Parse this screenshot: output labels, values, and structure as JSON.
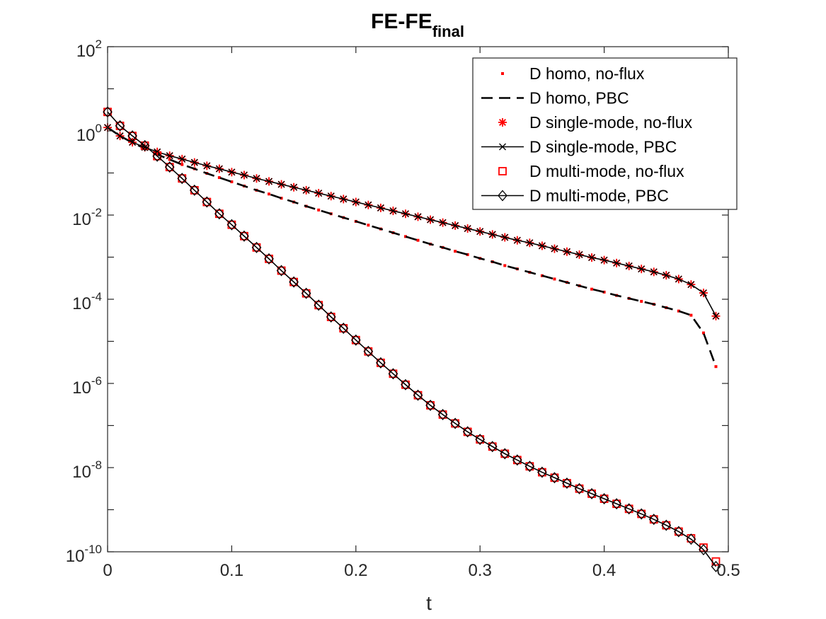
{
  "chart_data": {
    "type": "line",
    "title": "FE-FE",
    "title_subscript": "final",
    "xlabel": "t",
    "ylabel": "",
    "xlim": [
      0,
      0.5
    ],
    "ylim_log10": [
      -10,
      2
    ],
    "yscale": "log",
    "grid": false,
    "legend_position": "top-right",
    "x_ticks": [
      0,
      0.1,
      0.2,
      0.3,
      0.4,
      0.5
    ],
    "x_tick_labels": [
      "0",
      "0.1",
      "0.2",
      "0.3",
      "0.4",
      "0.5"
    ],
    "y_tick_exponents": [
      2,
      0,
      -2,
      -4,
      -6,
      -8,
      -10
    ],
    "y_tick_base": "10",
    "y_tick_exponent_labels": [
      "2",
      "0",
      "-2",
      "-4",
      "-6",
      "-8",
      "-10"
    ],
    "x": [
      0,
      0.01,
      0.02,
      0.03,
      0.04,
      0.05,
      0.06,
      0.07,
      0.08,
      0.09,
      0.1,
      0.11,
      0.12,
      0.13,
      0.14,
      0.15,
      0.16,
      0.17,
      0.18,
      0.19,
      0.2,
      0.21,
      0.22,
      0.23,
      0.24,
      0.25,
      0.26,
      0.27,
      0.28,
      0.29,
      0.3,
      0.31,
      0.32,
      0.33,
      0.34,
      0.35,
      0.36,
      0.37,
      0.38,
      0.39,
      0.4,
      0.41,
      0.42,
      0.43,
      0.44,
      0.45,
      0.46,
      0.47,
      0.48,
      0.49
    ],
    "series": [
      {
        "name": "D homo, no-flux",
        "style": "points",
        "color": "#ff0000",
        "log10_values": [
          0.08,
          -0.12,
          -0.28,
          -0.42,
          -0.56,
          -0.68,
          -0.8,
          -0.9,
          -1.01,
          -1.11,
          -1.21,
          -1.31,
          -1.41,
          -1.5,
          -1.6,
          -1.69,
          -1.79,
          -1.88,
          -1.97,
          -2.06,
          -2.15,
          -2.24,
          -2.33,
          -2.42,
          -2.51,
          -2.6,
          -2.69,
          -2.77,
          -2.86,
          -2.94,
          -3.03,
          -3.11,
          -3.2,
          -3.28,
          -3.36,
          -3.44,
          -3.52,
          -3.6,
          -3.68,
          -3.76,
          -3.83,
          -3.91,
          -3.98,
          -4.05,
          -4.12,
          -4.2,
          -4.28,
          -4.38,
          -4.8,
          -5.6
        ]
      },
      {
        "name": "D homo, PBC",
        "style": "dashed",
        "color": "#000000",
        "log10_values": [
          0.08,
          -0.12,
          -0.28,
          -0.42,
          -0.56,
          -0.68,
          -0.8,
          -0.9,
          -1.01,
          -1.11,
          -1.21,
          -1.31,
          -1.41,
          -1.5,
          -1.6,
          -1.69,
          -1.79,
          -1.88,
          -1.97,
          -2.06,
          -2.15,
          -2.24,
          -2.33,
          -2.42,
          -2.51,
          -2.6,
          -2.69,
          -2.77,
          -2.86,
          -2.94,
          -3.03,
          -3.11,
          -3.2,
          -3.28,
          -3.36,
          -3.44,
          -3.52,
          -3.6,
          -3.68,
          -3.76,
          -3.83,
          -3.91,
          -3.98,
          -4.05,
          -4.12,
          -4.2,
          -4.28,
          -4.38,
          -4.8,
          -5.6
        ]
      },
      {
        "name": "D single-mode, no-flux",
        "style": "asterisk",
        "color": "#ff0000",
        "log10_values": [
          0.08,
          -0.12,
          -0.27,
          -0.39,
          -0.5,
          -0.59,
          -0.67,
          -0.75,
          -0.83,
          -0.9,
          -0.98,
          -1.05,
          -1.13,
          -1.2,
          -1.27,
          -1.34,
          -1.41,
          -1.48,
          -1.55,
          -1.62,
          -1.69,
          -1.76,
          -1.83,
          -1.9,
          -1.97,
          -2.04,
          -2.11,
          -2.18,
          -2.25,
          -2.32,
          -2.39,
          -2.46,
          -2.53,
          -2.6,
          -2.66,
          -2.73,
          -2.8,
          -2.87,
          -2.94,
          -3.01,
          -3.07,
          -3.14,
          -3.21,
          -3.28,
          -3.35,
          -3.43,
          -3.52,
          -3.65,
          -3.85,
          -4.4
        ]
      },
      {
        "name": "D single-mode, PBC",
        "style": "solid-x",
        "color": "#000000",
        "log10_values": [
          0.08,
          -0.12,
          -0.27,
          -0.39,
          -0.5,
          -0.59,
          -0.67,
          -0.75,
          -0.83,
          -0.9,
          -0.98,
          -1.05,
          -1.13,
          -1.2,
          -1.27,
          -1.34,
          -1.41,
          -1.48,
          -1.55,
          -1.62,
          -1.69,
          -1.76,
          -1.83,
          -1.9,
          -1.97,
          -2.04,
          -2.11,
          -2.18,
          -2.25,
          -2.32,
          -2.39,
          -2.46,
          -2.53,
          -2.6,
          -2.66,
          -2.73,
          -2.8,
          -2.87,
          -2.94,
          -3.01,
          -3.07,
          -3.14,
          -3.21,
          -3.28,
          -3.35,
          -3.43,
          -3.52,
          -3.65,
          -3.85,
          -4.4
        ]
      },
      {
        "name": "D multi-mode, no-flux",
        "style": "square",
        "color": "#ff0000",
        "log10_values": [
          0.45,
          0.12,
          -0.12,
          -0.35,
          -0.6,
          -0.86,
          -1.13,
          -1.41,
          -1.69,
          -1.97,
          -2.23,
          -2.5,
          -2.77,
          -3.04,
          -3.32,
          -3.59,
          -3.86,
          -4.14,
          -4.42,
          -4.69,
          -4.97,
          -5.24,
          -5.51,
          -5.77,
          -6.03,
          -6.28,
          -6.52,
          -6.74,
          -6.95,
          -7.15,
          -7.33,
          -7.5,
          -7.67,
          -7.82,
          -7.97,
          -8.11,
          -8.24,
          -8.37,
          -8.5,
          -8.62,
          -8.74,
          -8.86,
          -8.98,
          -9.1,
          -9.23,
          -9.37,
          -9.52,
          -9.68,
          -9.9,
          -10.23
        ]
      },
      {
        "name": "D multi-mode, PBC",
        "style": "solid-diamond",
        "color": "#000000",
        "log10_values": [
          0.45,
          0.12,
          -0.12,
          -0.35,
          -0.6,
          -0.86,
          -1.13,
          -1.41,
          -1.69,
          -1.97,
          -2.23,
          -2.5,
          -2.77,
          -3.04,
          -3.32,
          -3.59,
          -3.86,
          -4.14,
          -4.42,
          -4.69,
          -4.97,
          -5.24,
          -5.51,
          -5.77,
          -6.03,
          -6.28,
          -6.52,
          -6.74,
          -6.95,
          -7.15,
          -7.33,
          -7.5,
          -7.67,
          -7.82,
          -7.97,
          -8.11,
          -8.24,
          -8.37,
          -8.5,
          -8.62,
          -8.74,
          -8.86,
          -8.98,
          -9.1,
          -9.23,
          -9.37,
          -9.52,
          -9.7,
          -9.95,
          -10.35
        ]
      }
    ]
  }
}
